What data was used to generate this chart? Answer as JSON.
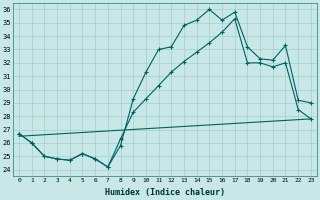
{
  "xlabel": "Humidex (Indice chaleur)",
  "background_color": "#c8e8e8",
  "grid_color": "#a8cccc",
  "line_color": "#006060",
  "xlim": [
    -0.5,
    23.5
  ],
  "ylim": [
    23.5,
    36.5
  ],
  "yticks": [
    24,
    25,
    26,
    27,
    28,
    29,
    30,
    31,
    32,
    33,
    34,
    35,
    36
  ],
  "xticks": [
    0,
    1,
    2,
    3,
    4,
    5,
    6,
    7,
    8,
    9,
    10,
    11,
    12,
    13,
    14,
    15,
    16,
    17,
    18,
    19,
    20,
    21,
    22,
    23
  ],
  "series1_x": [
    0,
    1,
    2,
    3,
    4,
    5,
    6,
    7,
    8,
    9,
    10,
    11,
    12,
    13,
    14,
    15,
    16,
    17,
    18,
    19,
    20,
    21,
    22,
    23
  ],
  "series1_y": [
    26.7,
    26.0,
    25.0,
    24.8,
    24.7,
    25.2,
    24.8,
    24.2,
    25.8,
    29.3,
    31.3,
    33.0,
    33.2,
    34.8,
    35.2,
    36.0,
    35.2,
    35.8,
    33.2,
    32.3,
    32.2,
    33.3,
    29.2,
    29.0
  ],
  "series2_x": [
    0,
    1,
    2,
    3,
    4,
    5,
    6,
    7,
    8,
    9,
    10,
    11,
    12,
    13,
    14,
    15,
    16,
    17,
    18,
    19,
    20,
    21,
    22,
    23
  ],
  "series2_y": [
    26.7,
    26.0,
    25.0,
    24.8,
    24.7,
    25.2,
    24.8,
    24.2,
    26.3,
    28.3,
    29.3,
    30.3,
    31.3,
    32.1,
    32.8,
    33.5,
    34.3,
    35.3,
    32.0,
    32.0,
    31.7,
    32.0,
    28.5,
    27.8
  ],
  "series3_x": [
    0,
    23
  ],
  "series3_y": [
    26.5,
    27.8
  ]
}
